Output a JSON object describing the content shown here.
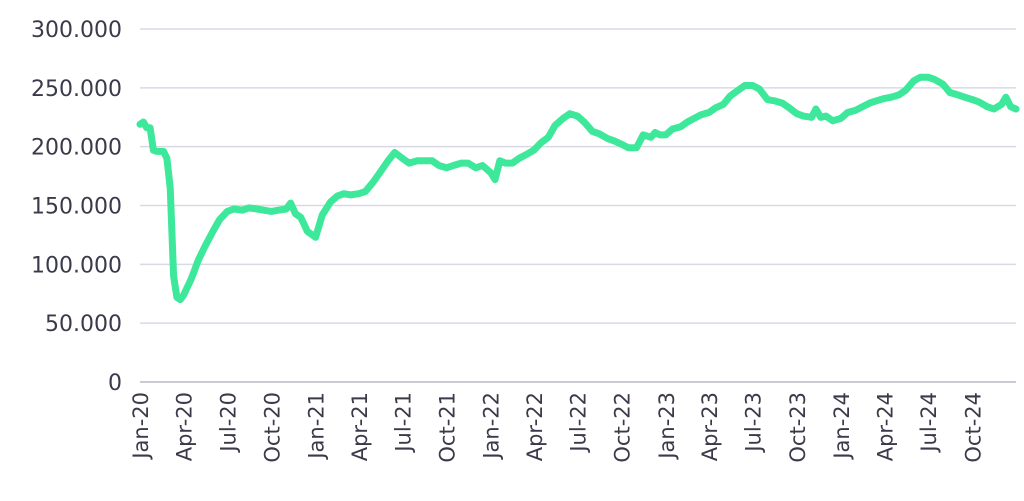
{
  "chart_data": {
    "type": "line",
    "title": "",
    "xlabel": "",
    "ylabel": "",
    "ylim": [
      0,
      300000
    ],
    "y_ticks": [
      0,
      50000,
      100000,
      150000,
      200000,
      250000,
      300000
    ],
    "y_tick_labels": [
      "0",
      "50.000",
      "100.000",
      "150.000",
      "200.000",
      "250.000",
      "300.000"
    ],
    "x_range": [
      "2020-01-01",
      "2024-12-31"
    ],
    "x_ticks": [
      "2020-01-01",
      "2020-04-01",
      "2020-07-01",
      "2020-10-01",
      "2021-01-01",
      "2021-04-01",
      "2021-07-01",
      "2021-10-01",
      "2022-01-01",
      "2022-04-01",
      "2022-07-01",
      "2022-10-01",
      "2023-01-01",
      "2023-04-01",
      "2023-07-01",
      "2023-10-01",
      "2024-01-01",
      "2024-04-01",
      "2024-07-01",
      "2024-10-01"
    ],
    "x_tick_labels": [
      "Jan-20",
      "Apr-20",
      "Jul-20",
      "Oct-20",
      "Jan-21",
      "Apr-21",
      "Jul-21",
      "Oct-21",
      "Jan-22",
      "Apr-22",
      "Jul-22",
      "Oct-22",
      "Jan-23",
      "Apr-23",
      "Jul-23",
      "Oct-23",
      "Jan-24",
      "Apr-24",
      "Jul-24",
      "Oct-24"
    ],
    "grid": true,
    "colors": {
      "line": "#3de89a",
      "grid": "#d9d9e6",
      "axis": "#b8b8c8",
      "text": "#3a3a4a"
    },
    "series": [
      {
        "x": [
          "2020-01-01",
          "2020-01-08",
          "2020-01-15",
          "2020-01-22",
          "2020-01-29",
          "2020-02-05",
          "2020-02-12",
          "2020-02-19",
          "2020-02-26",
          "2020-03-04",
          "2020-03-11",
          "2020-03-18",
          "2020-03-25",
          "2020-04-01",
          "2020-04-08",
          "2020-04-15",
          "2020-04-22",
          "2020-05-01",
          "2020-05-15",
          "2020-06-01",
          "2020-06-15",
          "2020-07-01",
          "2020-07-15",
          "2020-08-01",
          "2020-08-15",
          "2020-09-01",
          "2020-09-15",
          "2020-10-01",
          "2020-10-15",
          "2020-11-01",
          "2020-11-10",
          "2020-11-20",
          "2020-12-01",
          "2020-12-15",
          "2021-01-01",
          "2021-01-15",
          "2021-02-01",
          "2021-02-15",
          "2021-03-01",
          "2021-03-15",
          "2021-04-01",
          "2021-04-15",
          "2021-05-01",
          "2021-05-15",
          "2021-06-01",
          "2021-06-15",
          "2021-07-01",
          "2021-07-15",
          "2021-08-01",
          "2021-08-15",
          "2021-09-01",
          "2021-09-15",
          "2021-10-01",
          "2021-10-15",
          "2021-11-01",
          "2021-11-15",
          "2021-12-01",
          "2021-12-15",
          "2022-01-01",
          "2022-01-10",
          "2022-01-20",
          "2022-02-01",
          "2022-02-15",
          "2022-03-01",
          "2022-03-15",
          "2022-04-01",
          "2022-04-15",
          "2022-05-01",
          "2022-05-15",
          "2022-06-01",
          "2022-06-15",
          "2022-07-01",
          "2022-07-15",
          "2022-08-01",
          "2022-08-15",
          "2022-09-01",
          "2022-09-15",
          "2022-10-01",
          "2022-10-15",
          "2022-11-01",
          "2022-11-15",
          "2022-12-01",
          "2022-12-10",
          "2022-12-20",
          "2023-01-01",
          "2023-01-15",
          "2023-02-01",
          "2023-02-15",
          "2023-03-01",
          "2023-03-15",
          "2023-04-01",
          "2023-04-15",
          "2023-05-01",
          "2023-05-15",
          "2023-06-01",
          "2023-06-15",
          "2023-07-01",
          "2023-07-15",
          "2023-08-01",
          "2023-08-15",
          "2023-09-01",
          "2023-09-15",
          "2023-10-01",
          "2023-10-15",
          "2023-11-01",
          "2023-11-10",
          "2023-11-20",
          "2023-12-01",
          "2023-12-15",
          "2024-01-01",
          "2024-01-15",
          "2024-02-01",
          "2024-02-15",
          "2024-03-01",
          "2024-03-15",
          "2024-04-01",
          "2024-04-15",
          "2024-05-01",
          "2024-05-15",
          "2024-06-01",
          "2024-06-15",
          "2024-07-01",
          "2024-07-15",
          "2024-08-01",
          "2024-08-15",
          "2024-09-01",
          "2024-09-15",
          "2024-10-01",
          "2024-10-15",
          "2024-11-01",
          "2024-11-15",
          "2024-12-01",
          "2024-12-10",
          "2024-12-20",
          "2024-12-31"
        ],
        "values": [
          219000,
          221000,
          216000,
          216000,
          197000,
          196000,
          196000,
          196000,
          190000,
          165000,
          90000,
          72000,
          70000,
          74000,
          80000,
          86000,
          93000,
          103000,
          115000,
          128000,
          138000,
          145000,
          147000,
          146000,
          148000,
          147000,
          146000,
          145000,
          146000,
          147000,
          152000,
          143000,
          140000,
          128000,
          123000,
          142000,
          153000,
          158000,
          160000,
          159000,
          160000,
          162000,
          170000,
          178000,
          188000,
          195000,
          190000,
          186000,
          188000,
          188000,
          188000,
          184000,
          182000,
          184000,
          186000,
          186000,
          182000,
          184000,
          178000,
          172000,
          188000,
          186000,
          186000,
          190000,
          193000,
          197000,
          203000,
          208000,
          218000,
          224000,
          228000,
          226000,
          221000,
          213000,
          211000,
          207000,
          205000,
          202000,
          199000,
          199000,
          210000,
          208000,
          212000,
          210000,
          210000,
          215000,
          217000,
          221000,
          224000,
          227000,
          229000,
          233000,
          236000,
          243000,
          248000,
          252000,
          252000,
          249000,
          240000,
          239000,
          237000,
          233000,
          228000,
          226000,
          225000,
          232000,
          225000,
          226000,
          222000,
          224000,
          229000,
          231000,
          234000,
          237000,
          239000,
          241000,
          242000,
          244000,
          248000,
          256000,
          259000,
          259000,
          257000,
          253000,
          246000,
          244000,
          242000,
          240000,
          238000,
          234000,
          232000,
          236000,
          242000,
          234000,
          232000
        ]
      }
    ]
  }
}
